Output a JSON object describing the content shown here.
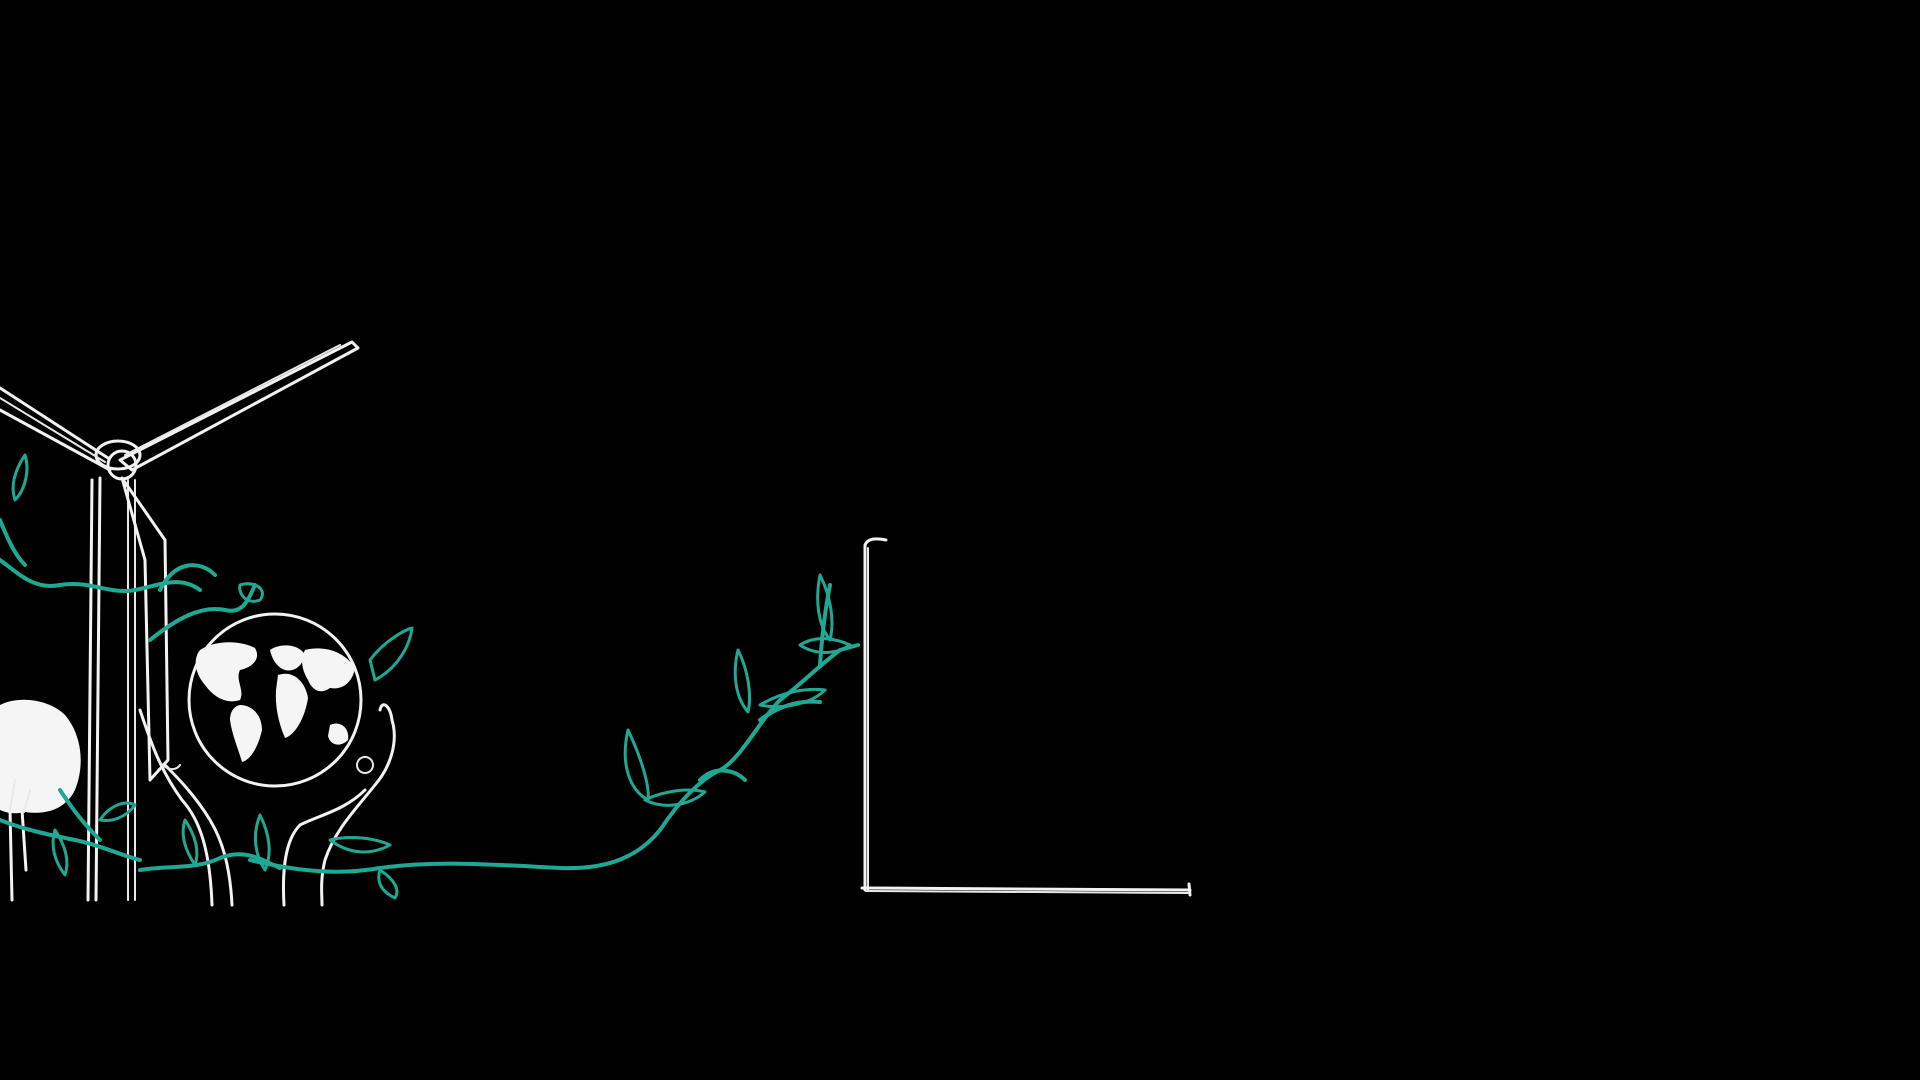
{
  "scene": {
    "background_color": "#000000",
    "line_color": "#f2f2f2",
    "vine_color": "#1fa893",
    "icons": [
      "wind-turbine-icon",
      "globe-icon",
      "hands-icon",
      "tree-icon",
      "vine-icon",
      "chart-axes-icon"
    ]
  }
}
